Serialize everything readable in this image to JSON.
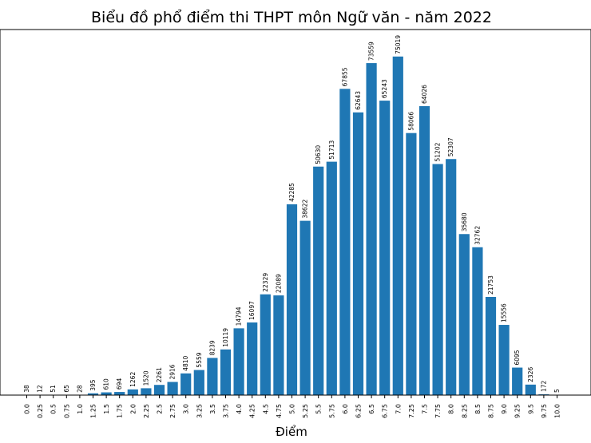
{
  "chart_data": {
    "type": "bar",
    "title": "Biểu đồ phổ điểm thi THPT môn Ngữ văn - năm 2022",
    "xlabel": "Điểm",
    "ylabel": "",
    "bar_color": "#1f77b4",
    "ylim": [
      0,
      81000
    ],
    "grid": false,
    "categories": [
      "0.0",
      "0.25",
      "0.5",
      "0.75",
      "1.0",
      "1.25",
      "1.5",
      "1.75",
      "2.0",
      "2.25",
      "2.5",
      "2.75",
      "3.0",
      "3.25",
      "3.5",
      "3.75",
      "4.0",
      "4.25",
      "4.5",
      "4.75",
      "5.0",
      "5.25",
      "5.5",
      "5.75",
      "6.0",
      "6.25",
      "6.5",
      "6.75",
      "7.0",
      "7.25",
      "7.5",
      "7.75",
      "8.0",
      "8.25",
      "8.5",
      "8.75",
      "9.0",
      "9.25",
      "9.5",
      "9.75",
      "10.0"
    ],
    "values": [
      38,
      12,
      51,
      65,
      28,
      395,
      610,
      694,
      1262,
      1520,
      2261,
      2916,
      4810,
      5559,
      8239,
      10119,
      14794,
      16097,
      22329,
      22089,
      42285,
      38622,
      50630,
      51713,
      67855,
      62643,
      73559,
      65243,
      75019,
      58066,
      64026,
      51202,
      52307,
      35680,
      32762,
      21753,
      15556,
      6095,
      2326,
      172,
      5
    ]
  }
}
